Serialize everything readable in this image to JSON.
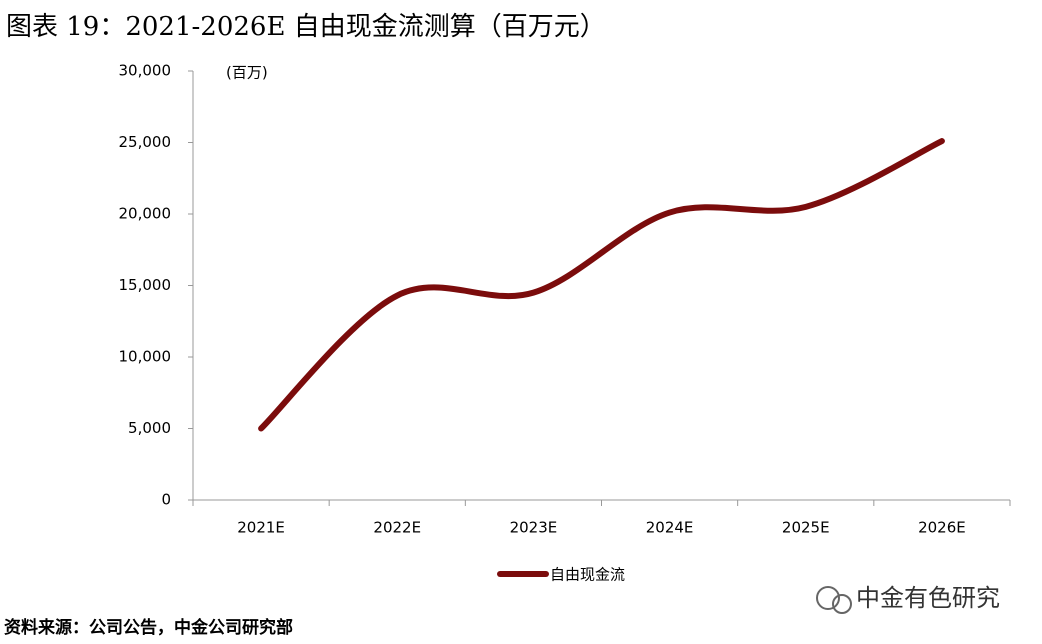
{
  "title": "图表 19：2021-2026E 自由现金流测算（百万元）",
  "source": "资料来源：公司公告，中金公司研究部",
  "watermark": "中金有色研究",
  "chart_data": {
    "type": "line",
    "y_unit_label": "(百万)",
    "categories": [
      "2021E",
      "2022E",
      "2023E",
      "2024E",
      "2025E",
      "2026E"
    ],
    "series": [
      {
        "name": "自由现金流",
        "color": "#7b0c0c",
        "values": [
          5000,
          14300,
          14500,
          20100,
          20500,
          25100
        ]
      }
    ],
    "ylim": [
      0,
      30000
    ],
    "yticks": [
      0,
      {
        "value": 5000,
        "label": "5,000"
      },
      {
        "value": 10000,
        "label": "10,000"
      },
      {
        "value": 15000,
        "label": "15,000"
      },
      {
        "value": 20000,
        "label": "20,000"
      },
      {
        "value": 25000,
        "label": "25,000"
      },
      {
        "value": 30000,
        "label": "30,000"
      }
    ],
    "smooth": true,
    "legend": "bottom"
  }
}
